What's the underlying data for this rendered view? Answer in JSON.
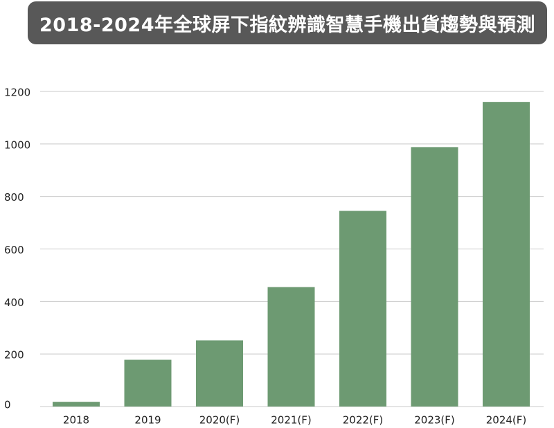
{
  "chart_data": {
    "type": "bar",
    "title": "2018-2024年全球屏下指紋辨識智慧手機出貨趨勢與預測",
    "xlabel": "",
    "ylabel": "",
    "categories": [
      "2018",
      "2019",
      "2020(F)",
      "2021(F)",
      "2022(F)",
      "2023(F)",
      "2024(F)"
    ],
    "values": [
      18,
      178,
      252,
      455,
      745,
      988,
      1160
    ],
    "ylim": [
      0,
      1200
    ],
    "yticks": [
      0,
      200,
      400,
      600,
      800,
      1000,
      1200
    ],
    "grid": true,
    "legend": "none",
    "bar_color": "#6d9a72",
    "grid_color": "#c8c8c8",
    "title_bg_color": "#585858",
    "title_text_color": "#ffffff"
  }
}
